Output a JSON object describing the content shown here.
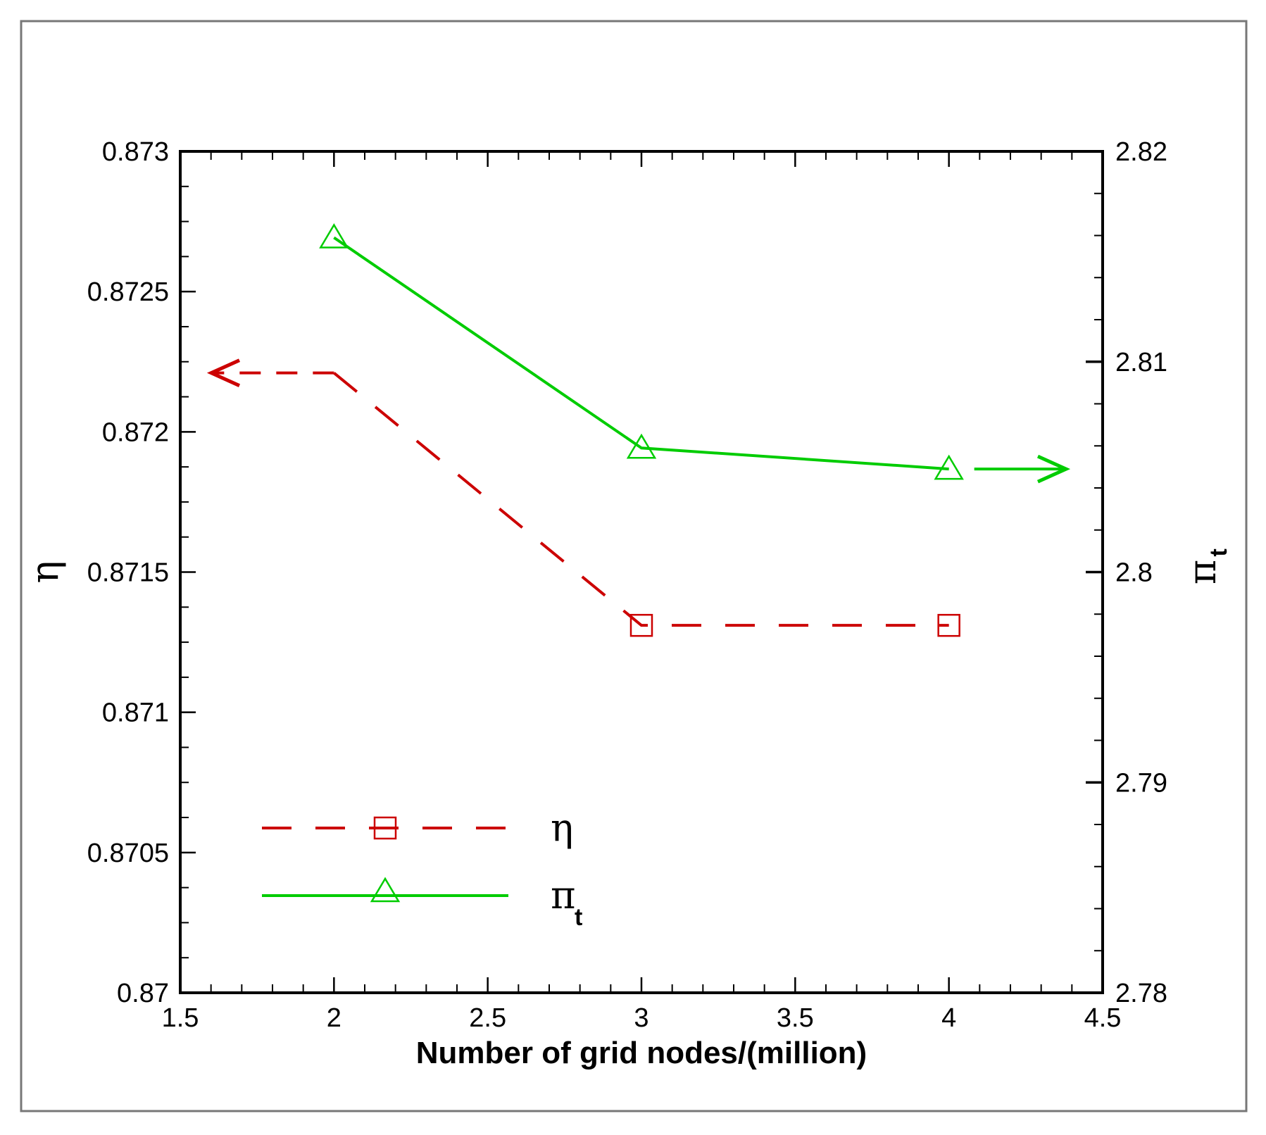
{
  "chart_data": {
    "type": "line",
    "title": "",
    "xlabel": "Number of grid nodes/(million)",
    "ylabel_left": {
      "symbol": "η",
      "subscript": ""
    },
    "ylabel_right": {
      "symbol": "π",
      "subscript": "t"
    },
    "xlim": [
      1.5,
      4.5
    ],
    "ylim_left": [
      0.87,
      0.873
    ],
    "ylim_right": [
      2.78,
      2.82
    ],
    "x_ticks": [
      {
        "value": 1.5,
        "label": "1.5"
      },
      {
        "value": 2,
        "label": "2"
      },
      {
        "value": 2.5,
        "label": "2.5"
      },
      {
        "value": 3,
        "label": "3"
      },
      {
        "value": 3.5,
        "label": "3.5"
      },
      {
        "value": 4,
        "label": "4"
      },
      {
        "value": 4.5,
        "label": "4.5"
      }
    ],
    "y_left_ticks": [
      {
        "value": 0.87,
        "label": "0.87"
      },
      {
        "value": 0.8705,
        "label": "0.8705"
      },
      {
        "value": 0.871,
        "label": "0.871"
      },
      {
        "value": 0.8715,
        "label": "0.8715"
      },
      {
        "value": 0.872,
        "label": "0.872"
      },
      {
        "value": 0.8725,
        "label": "0.8725"
      },
      {
        "value": 0.873,
        "label": "0.873"
      }
    ],
    "y_right_ticks": [
      {
        "value": 2.78,
        "label": "2.78"
      },
      {
        "value": 2.79,
        "label": "2.79"
      },
      {
        "value": 2.8,
        "label": "2.8"
      },
      {
        "value": 2.81,
        "label": "2.81"
      },
      {
        "value": 2.82,
        "label": "2.82"
      }
    ],
    "series": [
      {
        "name": "η",
        "legend_symbol": "η",
        "legend_subscript": "",
        "axis": "left",
        "color": "#cc0000",
        "dash": "dashed",
        "marker": "square",
        "x": [
          2,
          3,
          4
        ],
        "y": [
          0.87221,
          0.87131,
          0.87131
        ],
        "marker_shown": [
          false,
          true,
          true
        ],
        "arrow_direction": "left"
      },
      {
        "name": "π_t",
        "legend_symbol": "π",
        "legend_subscript": "t",
        "axis": "right",
        "color": "#00cc00",
        "dash": "solid",
        "marker": "triangle",
        "x": [
          2,
          3,
          4
        ],
        "y": [
          2.8159,
          2.8059,
          2.8049
        ],
        "marker_shown": [
          true,
          true,
          true
        ],
        "arrow_direction": "right"
      }
    ],
    "legend_position": "lower-left",
    "grid": false
  }
}
